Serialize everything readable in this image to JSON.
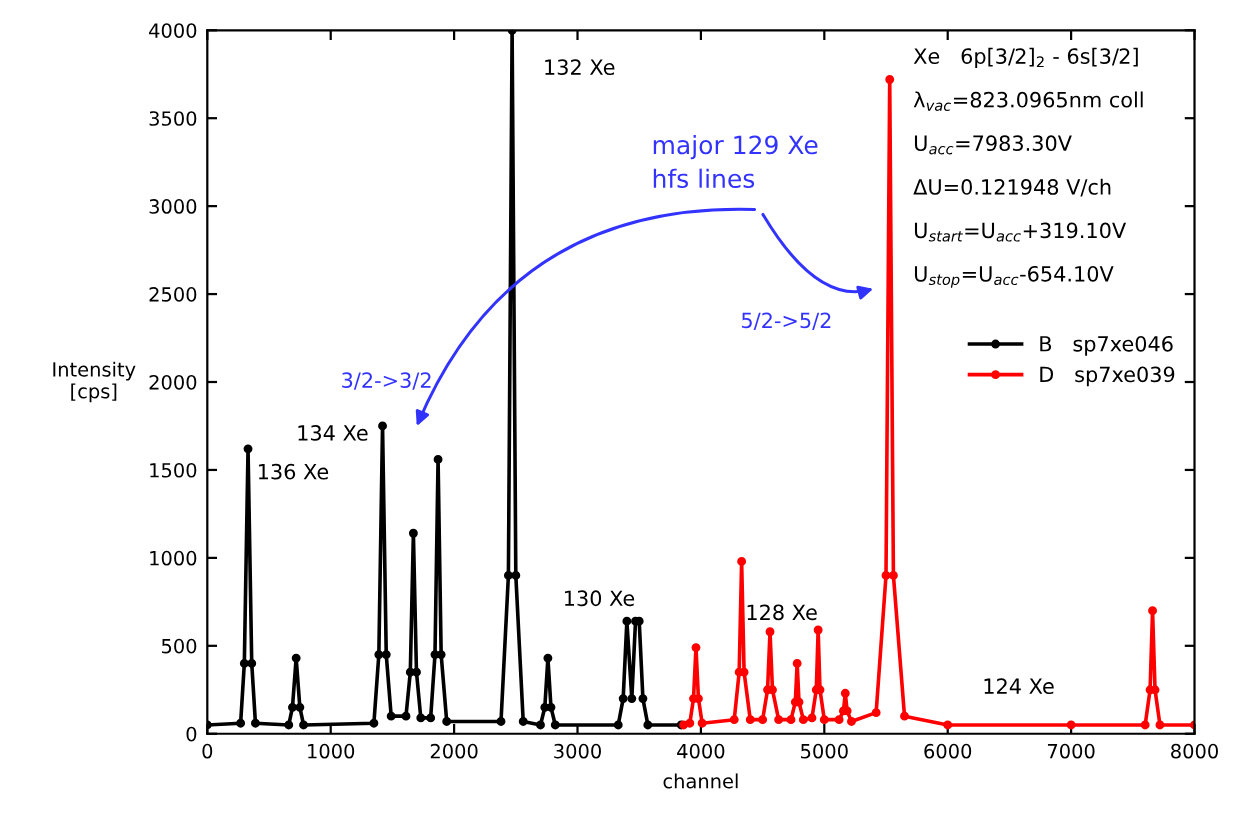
{
  "chart_data": {
    "type": "line",
    "xlabel": "channel",
    "ylabel": "Intensity\n[cps]",
    "xlim": [
      0,
      8000
    ],
    "xticks": [
      0,
      1000,
      2000,
      3000,
      4000,
      5000,
      6000,
      7000,
      8000
    ],
    "ylim": [
      0,
      4000
    ],
    "yticks": [
      0,
      500,
      1000,
      1500,
      2000,
      2500,
      3000,
      3500,
      4000
    ],
    "grid": false,
    "legend": "right",
    "marker": "circle",
    "line_style": "solid",
    "series": [
      {
        "name": "B   sp7xe046",
        "color": "#000000",
        "x": [
          0,
          270,
          300,
          330,
          360,
          390,
          660,
          690,
          720,
          750,
          780,
          1350,
          1390,
          1420,
          1450,
          1490,
          1610,
          1645,
          1670,
          1695,
          1730,
          1810,
          1845,
          1870,
          1895,
          1940,
          2380,
          2440,
          2470,
          2500,
          2560,
          2700,
          2735,
          2760,
          2785,
          2820,
          3330,
          3370,
          3400,
          3440,
          3470,
          3500,
          3530,
          3570,
          3840
        ],
        "values": [
          50,
          60,
          400,
          1620,
          400,
          60,
          50,
          150,
          430,
          150,
          50,
          60,
          450,
          1750,
          450,
          100,
          100,
          350,
          1140,
          350,
          90,
          90,
          450,
          1560,
          450,
          70,
          70,
          900,
          4000,
          900,
          70,
          50,
          150,
          430,
          150,
          50,
          50,
          200,
          640,
          200,
          640,
          640,
          200,
          50,
          50
        ]
      },
      {
        "name": "D   sp7xe039",
        "color": "#ff0000",
        "x": [
          3860,
          3910,
          3940,
          3960,
          3980,
          4010,
          4270,
          4310,
          4330,
          4350,
          4400,
          4500,
          4540,
          4560,
          4580,
          4630,
          4730,
          4765,
          4780,
          4795,
          4830,
          4900,
          4935,
          4950,
          4965,
          5000,
          5120,
          5155,
          5170,
          5185,
          5220,
          5420,
          5500,
          5530,
          5560,
          5650,
          6000,
          7000,
          7600,
          7640,
          7660,
          7680,
          7720,
          8000
        ],
        "values": [
          50,
          60,
          200,
          490,
          200,
          60,
          80,
          350,
          980,
          350,
          80,
          80,
          250,
          580,
          250,
          80,
          80,
          180,
          400,
          180,
          80,
          90,
          250,
          590,
          250,
          80,
          80,
          130,
          230,
          130,
          70,
          120,
          900,
          3720,
          900,
          100,
          50,
          50,
          50,
          250,
          700,
          250,
          50,
          50
        ]
      }
    ],
    "annotations": [
      "132 Xe",
      "134 Xe",
      "136 Xe",
      "130 Xe",
      "128 Xe",
      "124 Xe",
      "major 129 Xe\nhfs lines",
      "3/2->3/2",
      "5/2->5/2",
      "Xe   6p[3/2]$_{2}$ - 6s[3/2]",
      "λ$_{vac}$=823.0965nm coll",
      "U$_{acc}$=7983.30V",
      "ΔU=0.121948 V/ch",
      "U$_{start}$=U$_{acc}$+319.10V",
      "U$_{stop}$=U$_{acc}$-654.10V"
    ]
  }
}
